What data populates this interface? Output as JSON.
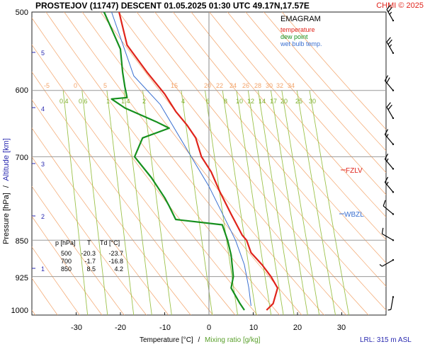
{
  "header": {
    "title": "PROSTEJOV (11747)   DESCENT   01.05.2025 01:30 UTC  49.17N,17.57E",
    "copyright": "CHMI © 2025"
  },
  "legend": {
    "title": "EMAGRAM",
    "items": [
      {
        "label": "temperature",
        "color": "#e0241b"
      },
      {
        "label": "dew point",
        "color": "#16901e"
      },
      {
        "label": "wet bulb temp.",
        "color": "#3a6fd0"
      }
    ]
  },
  "axes": {
    "ylabel_pressure": "Pressure [hPa]",
    "ylabel_sep": "/",
    "ylabel_altitude": "Altitude [km]",
    "xlabel_temp": "Temperature [°C]",
    "xlabel_sep": "/",
    "xlabel_mix": "Mixing ratio [g/kg]",
    "pressure_ticks": [
      "500",
      "600",
      "700",
      "850",
      "925",
      "1000"
    ],
    "temp_ticks": [
      "-30",
      "-20",
      "-10",
      "0",
      "10",
      "20",
      "30"
    ],
    "altitude_ticks": [
      "5",
      "4",
      "3",
      "2",
      "1"
    ],
    "mixing_ratio_labels": [
      "0.4",
      "0.6",
      "1",
      "1.4",
      "2",
      "4",
      "6",
      "8",
      "10",
      "12",
      "14",
      "17",
      "20",
      "25",
      "30"
    ],
    "theta_labels": [
      "-5",
      "0",
      "5",
      "15",
      "20",
      "22",
      "24",
      "26",
      "28",
      "30",
      "32",
      "34"
    ]
  },
  "markers": {
    "fzlv": "FZLV",
    "wbzl": "WBZL"
  },
  "footer": {
    "lrl": "LRL: 315 m ASL"
  },
  "table": {
    "headers": [
      "p [hPa]",
      "T",
      "Td [°C]"
    ],
    "rows": [
      [
        "500",
        "-20.3",
        "-23.7"
      ],
      [
        "700",
        "-1.7",
        "-16.8"
      ],
      [
        "850",
        "8.5",
        "4.2"
      ]
    ]
  },
  "colors": {
    "temperature": "#e0241b",
    "dewpoint": "#16901e",
    "wetbulb": "#3a6fd0",
    "dry_adiabat": "#f3a46a",
    "mixing_ratio": "#9cc24a",
    "isobar": "#999999",
    "altitude": "#2a2ab0"
  },
  "chart_data": {
    "type": "line",
    "title": "EMAGRAM",
    "xlabel": "Temperature [°C]",
    "ylabel": "Pressure [hPa]",
    "xlim": [
      -40,
      35
    ],
    "ylim": [
      1000,
      500
    ],
    "y_scale": "log",
    "grid": true,
    "legend_position": "top-right",
    "series": [
      {
        "name": "temperature",
        "points": [
          [
            -20.3,
            500
          ],
          [
            -18.5,
            540
          ],
          [
            -14,
            575
          ],
          [
            -10,
            605
          ],
          [
            -7.5,
            630
          ],
          [
            -5,
            650
          ],
          [
            -3,
            670
          ],
          [
            -1.7,
            700
          ],
          [
            0.5,
            725
          ],
          [
            2.5,
            760
          ],
          [
            5,
            800
          ],
          [
            7.5,
            840
          ],
          [
            8.5,
            850
          ],
          [
            9.5,
            875
          ],
          [
            12,
            900
          ],
          [
            14,
            925
          ],
          [
            15.5,
            950
          ],
          [
            14.5,
            985
          ],
          [
            13,
            1000
          ]
        ]
      },
      {
        "name": "dew point",
        "points": [
          [
            -23.7,
            500
          ],
          [
            -22,
            520
          ],
          [
            -20,
            545
          ],
          [
            -19.5,
            575
          ],
          [
            -19,
            595
          ],
          [
            -18.5,
            610
          ],
          [
            -22,
            612
          ],
          [
            -19,
            625
          ],
          [
            -12,
            645
          ],
          [
            -9,
            655
          ],
          [
            -15,
            670
          ],
          [
            -16.8,
            700
          ],
          [
            -13,
            735
          ],
          [
            -10,
            770
          ],
          [
            -9,
            785
          ],
          [
            -7.5,
            810
          ],
          [
            3,
            820
          ],
          [
            4.2,
            850
          ],
          [
            5,
            880
          ],
          [
            5.5,
            925
          ],
          [
            5,
            950
          ],
          [
            7,
            985
          ],
          [
            8,
            1000
          ]
        ]
      },
      {
        "name": "wet bulb temp.",
        "points": [
          [
            -22,
            500
          ],
          [
            -17,
            580
          ],
          [
            -11,
            620
          ],
          [
            -4,
            700
          ],
          [
            0,
            750
          ],
          [
            4,
            815
          ],
          [
            6,
            850
          ],
          [
            8,
            900
          ],
          [
            9,
            950
          ],
          [
            9.5,
            990
          ]
        ]
      }
    ],
    "fzlv_hpa": 725,
    "wbzl_hpa": 800,
    "mixing_ratio_lines_gkg": [
      0.4,
      0.6,
      1,
      1.4,
      2,
      4,
      6,
      8,
      10,
      12,
      14,
      17,
      20,
      25,
      30
    ],
    "dry_adiabats_c": [
      -5,
      0,
      5,
      15,
      20,
      22,
      24,
      26,
      28,
      30,
      32,
      34
    ],
    "altitude_km": [
      1,
      2,
      3,
      4,
      5
    ],
    "wind_barbs": [
      {
        "p": 510,
        "dir": 330,
        "kt": 25
      },
      {
        "p": 550,
        "dir": 330,
        "kt": 25
      },
      {
        "p": 600,
        "dir": 320,
        "kt": 20
      },
      {
        "p": 640,
        "dir": 330,
        "kt": 20
      },
      {
        "p": 680,
        "dir": 320,
        "kt": 15
      },
      {
        "p": 720,
        "dir": 320,
        "kt": 15
      },
      {
        "p": 760,
        "dir": 320,
        "kt": 15
      },
      {
        "p": 800,
        "dir": 310,
        "kt": 10
      },
      {
        "p": 850,
        "dir": 300,
        "kt": 10
      },
      {
        "p": 890,
        "dir": 240,
        "kt": 5
      },
      {
        "p": 970,
        "dir": 190,
        "kt": 5
      }
    ]
  }
}
